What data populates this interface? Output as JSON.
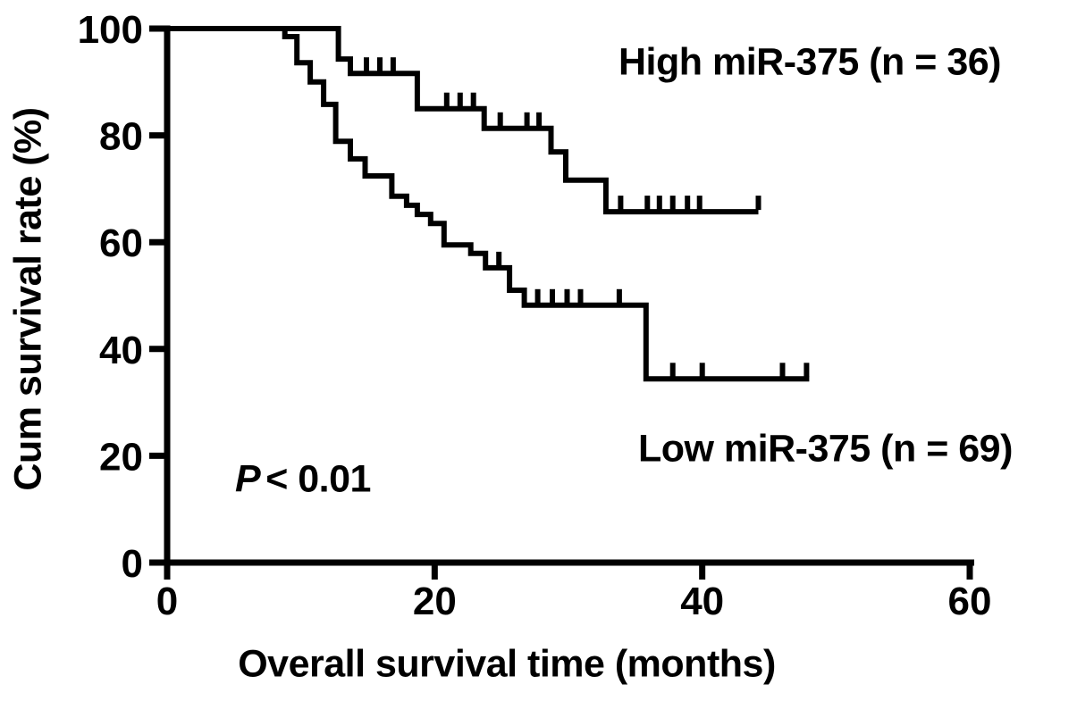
{
  "chart_data": {
    "type": "line",
    "subtype": "kaplan-meier-step-curve",
    "title": "",
    "xlabel": "Overall survival time (months)",
    "ylabel": "Cum survival rate (%)",
    "xlim": [
      0,
      60
    ],
    "ylim": [
      0,
      100
    ],
    "x_ticks": [
      0,
      20,
      40,
      60
    ],
    "y_ticks": [
      100,
      80,
      60,
      40,
      20,
      0
    ],
    "grid": false,
    "legend_position": "annotations-inside-plot",
    "line_color": "#000000",
    "background_color": "#ffffff",
    "annotation": {
      "symbol": "P",
      "comparison": "< 0.01",
      "full_text": "P < 0.01"
    },
    "series": [
      {
        "name": "High miR-375",
        "label": "High miR-375 (n = 36)",
        "n": 36,
        "steps": [
          [
            0,
            100
          ],
          [
            12.8,
            100
          ],
          [
            12.8,
            94.3
          ],
          [
            13.7,
            94.3
          ],
          [
            13.7,
            91.6
          ],
          [
            18.7,
            91.6
          ],
          [
            18.7,
            85.0
          ],
          [
            23.7,
            85.0
          ],
          [
            23.7,
            81.3
          ],
          [
            28.7,
            81.3
          ],
          [
            28.7,
            76.9
          ],
          [
            29.8,
            76.9
          ],
          [
            29.8,
            71.6
          ],
          [
            32.8,
            71.6
          ],
          [
            32.8,
            65.7
          ],
          [
            44.2,
            65.7
          ]
        ],
        "censor_marks": [
          [
            14.9,
            91.6
          ],
          [
            15.9,
            91.6
          ],
          [
            16.9,
            91.6
          ],
          [
            20.9,
            85.0
          ],
          [
            21.9,
            85.0
          ],
          [
            22.9,
            85.0
          ],
          [
            24.9,
            81.3
          ],
          [
            26.9,
            81.3
          ],
          [
            27.8,
            81.3
          ],
          [
            33.9,
            65.7
          ],
          [
            35.9,
            65.7
          ],
          [
            36.8,
            65.7
          ],
          [
            37.8,
            65.7
          ],
          [
            38.9,
            65.7
          ],
          [
            39.8,
            65.7
          ],
          [
            44.2,
            65.7
          ]
        ]
      },
      {
        "name": "Low miR-375",
        "label": "Low miR-375 (n = 69)",
        "n": 69,
        "steps": [
          [
            0,
            100
          ],
          [
            8.8,
            100
          ],
          [
            8.8,
            98.5
          ],
          [
            9.7,
            98.5
          ],
          [
            9.7,
            93.6
          ],
          [
            10.7,
            93.6
          ],
          [
            10.7,
            90.0
          ],
          [
            11.7,
            90.0
          ],
          [
            11.7,
            85.8
          ],
          [
            12.6,
            85.8
          ],
          [
            12.6,
            78.9
          ],
          [
            13.7,
            78.9
          ],
          [
            13.7,
            75.6
          ],
          [
            14.8,
            75.6
          ],
          [
            14.8,
            72.4
          ],
          [
            16.8,
            72.4
          ],
          [
            16.8,
            68.6
          ],
          [
            17.9,
            68.6
          ],
          [
            17.9,
            66.9
          ],
          [
            18.7,
            66.9
          ],
          [
            18.7,
            65.2
          ],
          [
            19.7,
            65.2
          ],
          [
            19.7,
            63.5
          ],
          [
            20.7,
            63.5
          ],
          [
            20.7,
            59.5
          ],
          [
            22.7,
            59.5
          ],
          [
            22.7,
            57.9
          ],
          [
            23.8,
            57.9
          ],
          [
            23.8,
            55.2
          ],
          [
            25.6,
            55.2
          ],
          [
            25.6,
            51.0
          ],
          [
            26.7,
            51.0
          ],
          [
            26.7,
            48.2
          ],
          [
            35.8,
            48.2
          ],
          [
            35.8,
            34.4
          ],
          [
            48.0,
            34.4
          ]
        ],
        "censor_marks": [
          [
            24.8,
            55.2
          ],
          [
            27.7,
            48.2
          ],
          [
            28.8,
            48.2
          ],
          [
            29.9,
            48.2
          ],
          [
            30.9,
            48.2
          ],
          [
            33.8,
            48.2
          ],
          [
            37.8,
            34.4
          ],
          [
            40.0,
            34.4
          ],
          [
            46.0,
            34.4
          ],
          [
            47.8,
            34.4
          ]
        ]
      }
    ]
  }
}
